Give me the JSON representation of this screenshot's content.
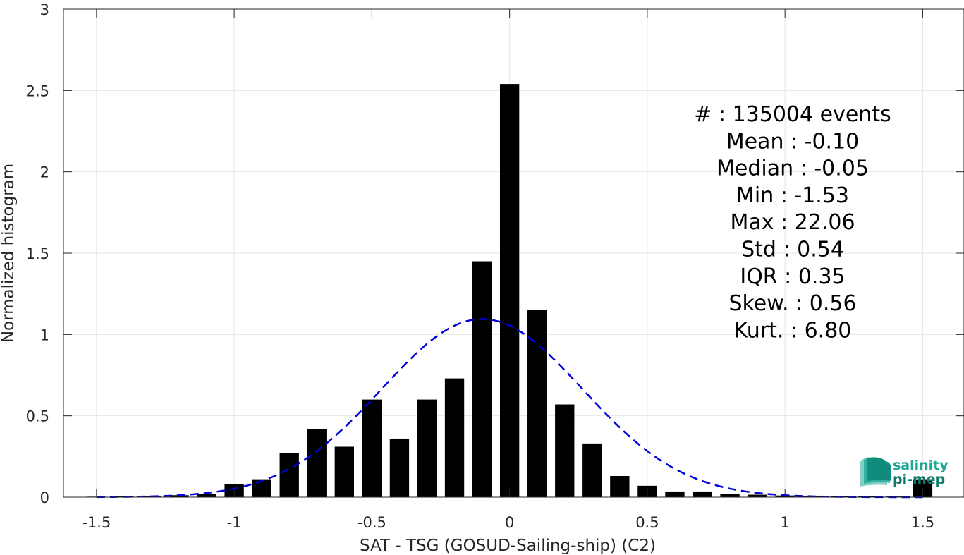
{
  "chart_data": {
    "type": "bar",
    "xlabel": "SAT - TSG (GOSUD-Sailing-ship) (C2)",
    "ylabel": "Normalized histogram",
    "xlim": [
      -1.62,
      1.65
    ],
    "ylim": [
      0,
      3
    ],
    "xticks": [
      -1.5,
      -1,
      -0.5,
      0,
      0.5,
      1,
      1.5
    ],
    "xtick_labels": [
      "-1.5",
      "-1",
      "-0.5",
      "0",
      "0.5",
      "1",
      "1.5"
    ],
    "yticks": [
      0,
      0.5,
      1,
      1.5,
      2,
      2.5,
      3
    ],
    "ytick_labels": [
      "0",
      "0.5",
      "1",
      "1.5",
      "2",
      "2.5",
      "3"
    ],
    "grid": true,
    "bar_width": 0.07,
    "bar_color": "#000000",
    "x": [
      -1.5,
      -1.4,
      -1.3,
      -1.2,
      -1.1,
      -1.0,
      -0.9,
      -0.8,
      -0.7,
      -0.6,
      -0.5,
      -0.4,
      -0.3,
      -0.2,
      -0.1,
      0.0,
      0.1,
      0.2,
      0.3,
      0.4,
      0.5,
      0.6,
      0.7,
      0.8,
      0.9,
      1.0,
      1.1,
      1.2,
      1.3,
      1.4,
      1.5
    ],
    "values": [
      0.003,
      0.005,
      0.007,
      0.012,
      0.02,
      0.08,
      0.11,
      0.27,
      0.42,
      0.31,
      0.6,
      0.36,
      0.6,
      0.73,
      1.45,
      2.54,
      1.15,
      0.57,
      0.33,
      0.13,
      0.07,
      0.035,
      0.035,
      0.018,
      0.015,
      0.01,
      0.008,
      0.006,
      0.005,
      0.004,
      0.11
    ],
    "fit_curve": {
      "style": "dashed",
      "color": "#0000dd",
      "mean": -0.1,
      "std": 0.365,
      "peak": 1.095,
      "x_range": [
        -1.5,
        1.5
      ]
    },
    "stats": [
      "#  : 135004 events",
      "Mean : -0.10",
      "Median : -0.05",
      "Min : -1.53",
      "Max : 22.06",
      "Std : 0.54",
      "IQR : 0.35",
      "Skew. : 0.56",
      "Kurt. : 6.80"
    ]
  },
  "logo": {
    "line1": "salinity",
    "line2": "pi-mep",
    "color": "#1aa895"
  }
}
